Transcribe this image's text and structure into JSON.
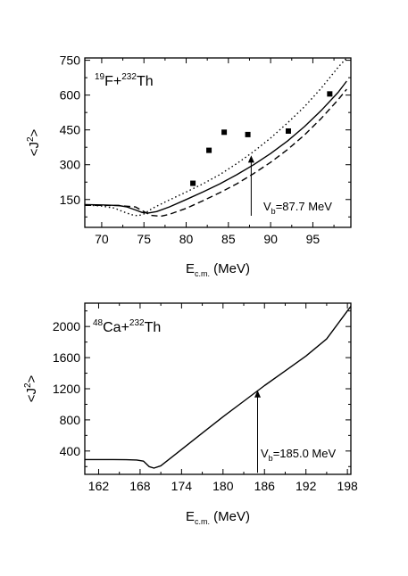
{
  "chart_data": [
    {
      "type": "line",
      "system": {
        "a1": "19",
        "p1": "F+",
        "a2": "232",
        "p2": "Th"
      },
      "xlabel": {
        "base": "E",
        "sub": "c.m.",
        "unit": " (MeV)"
      },
      "ylabel": {
        "base": "<J",
        "sup": "2",
        "end": ">"
      },
      "xlim": [
        68,
        99.5
      ],
      "ylim": [
        30,
        760
      ],
      "xticks": [
        "70",
        "75",
        "80",
        "85",
        "90",
        "95"
      ],
      "yticks": [
        "150",
        "300",
        "450",
        "600",
        "750"
      ],
      "annotation": {
        "base": "V",
        "sub": "b",
        "text": "=87.7 MeV",
        "arrow_x": 87.7,
        "arrow_y": [
          80,
          340
        ]
      },
      "series": [
        {
          "style": "solid",
          "x": [
            68,
            70,
            72,
            73,
            74,
            74.8,
            75.5,
            76.5,
            78,
            80,
            82,
            84,
            86,
            88,
            90,
            92,
            94,
            96,
            98,
            99
          ],
          "y": [
            128,
            127,
            124,
            118,
            105,
            94,
            92,
            98,
            118,
            150,
            183,
            218,
            257,
            300,
            348,
            402,
            464,
            534,
            612,
            660
          ]
        },
        {
          "style": "dashed",
          "x": [
            68,
            70,
            72,
            74,
            75,
            75.8,
            77,
            78,
            80,
            82,
            84,
            86,
            88,
            90,
            92,
            94,
            96,
            98,
            99
          ],
          "y": [
            125,
            125,
            124,
            118,
            98,
            82,
            78,
            86,
            112,
            145,
            180,
            218,
            262,
            310,
            365,
            428,
            500,
            580,
            625
          ]
        },
        {
          "style": "dotted",
          "x": [
            68,
            70,
            71.5,
            72.5,
            73.5,
            74.3,
            75,
            76,
            77,
            78,
            80,
            82,
            84,
            86,
            88,
            90,
            92,
            94,
            96,
            98,
            99
          ],
          "y": [
            127,
            122,
            113,
            98,
            85,
            80,
            88,
            112,
            130,
            148,
            182,
            218,
            258,
            305,
            357,
            415,
            480,
            550,
            630,
            720,
            760
          ]
        },
        {
          "style": "markers",
          "x": [
            80.8,
            82.7,
            84.5,
            87.3,
            92.1,
            97.0
          ],
          "y": [
            220,
            362,
            440,
            430,
            445,
            605
          ]
        }
      ]
    },
    {
      "type": "line",
      "system": {
        "a1": "48",
        "p1": "Ca+",
        "a2": "232",
        "p2": "Th"
      },
      "xlabel": {
        "base": "E",
        "sub": "c.m.",
        "unit": " (MeV)"
      },
      "ylabel": {
        "base": "<J",
        "sup": "2",
        "end": ">"
      },
      "xlim": [
        160,
        198.5
      ],
      "ylim": [
        100,
        2300
      ],
      "xticks": [
        "162",
        "168",
        "174",
        "180",
        "186",
        "192",
        "198"
      ],
      "yticks": [
        "400",
        "800",
        "1200",
        "1600",
        "2000"
      ],
      "annotation": {
        "base": "V",
        "sub": "b",
        "text": "=185.0 MeV",
        "arrow_x": 185.0,
        "arrow_y": [
          120,
          1180
        ]
      },
      "series": [
        {
          "style": "solid",
          "x": [
            160,
            163,
            166,
            167.5,
            168.5,
            169.3,
            170,
            171,
            174,
            177,
            180,
            183,
            186,
            189,
            192,
            195,
            198,
            198.5
          ],
          "y": [
            290,
            290,
            288,
            285,
            270,
            200,
            180,
            210,
            420,
            630,
            840,
            1040,
            1240,
            1430,
            1620,
            1840,
            2200,
            2260
          ]
        }
      ]
    }
  ]
}
